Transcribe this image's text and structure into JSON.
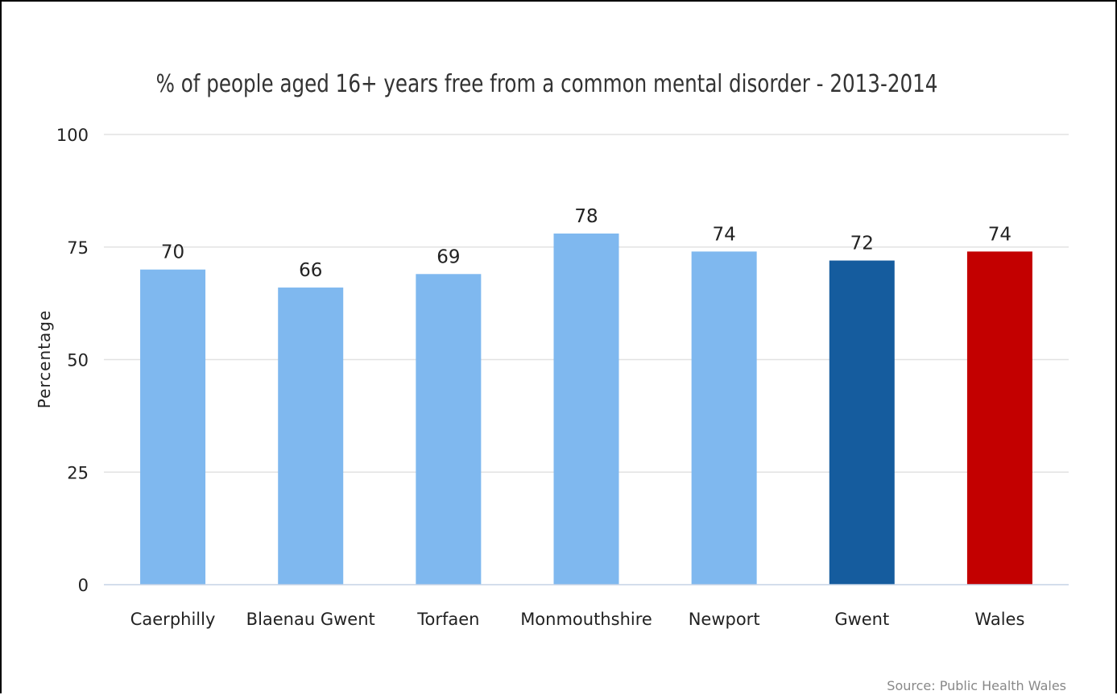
{
  "chart_data": {
    "type": "bar",
    "title": "% of people aged 16+ years free from a common mental disorder - 2013-2014",
    "ylabel": "Percentage",
    "xlabel": "",
    "ylim": [
      0,
      100
    ],
    "yticks": [
      0,
      25,
      50,
      75,
      100
    ],
    "grid": true,
    "categories": [
      "Caerphilly",
      "Blaenau Gwent",
      "Torfaen",
      "Monmouthshire",
      "Newport",
      "Gwent",
      "Wales"
    ],
    "values": [
      70,
      66,
      69,
      78,
      74,
      72,
      74
    ],
    "data_labels": [
      "70",
      "66",
      "69",
      "78",
      "74",
      "72",
      "74"
    ],
    "bar_colors": [
      "#7fb8ef",
      "#7fb8ef",
      "#7fb8ef",
      "#7fb8ef",
      "#7fb8ef",
      "#155c9e",
      "#c30000"
    ],
    "source": "Source: Public Health Wales"
  }
}
